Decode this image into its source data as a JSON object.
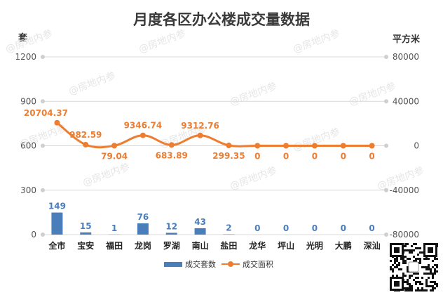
{
  "colors": {
    "bars": "#4a7ebb",
    "line": "#ed7d31",
    "grid": "#d9d9d9",
    "axis_text": "#555555",
    "watermark": "#e6e6e6"
  },
  "icons": {
    "qr_code": "qr-code-icon",
    "watermark": "watermark-icon"
  },
  "watermark_text": "@房地内参",
  "chart_data": {
    "type": "bar",
    "title": "月度各区办公楼成交量数据",
    "left_unit": "套",
    "right_unit": "平方米",
    "categories": [
      "全市",
      "宝安",
      "福田",
      "龙岗",
      "罗湖",
      "南山",
      "盐田",
      "龙华",
      "坪山",
      "光明",
      "大鹏",
      "深汕"
    ],
    "series": [
      {
        "name": "成交套数",
        "type": "bar",
        "axis": "left",
        "values": [
          149,
          15,
          1,
          76,
          12,
          43,
          2,
          0,
          0,
          0,
          0,
          0
        ],
        "labels": [
          "149",
          "15",
          "1",
          "76",
          "12",
          "43",
          "2",
          "0",
          "0",
          "0",
          "0",
          "0"
        ]
      },
      {
        "name": "成交面积",
        "type": "line",
        "axis": "right",
        "values": [
          20704.37,
          982.59,
          79.04,
          9346.74,
          683.89,
          9312.76,
          299.35,
          0,
          0,
          0,
          0,
          0
        ],
        "labels": [
          "20704.37",
          "982.59",
          "79.04",
          "9346.74",
          "683.89",
          "9312.76",
          "299.35",
          "0",
          "0",
          "0",
          "0",
          "0"
        ]
      }
    ],
    "left_axis": {
      "range": [
        0,
        1200
      ],
      "ticks": [
        "0",
        "300",
        "600",
        "900",
        "1200"
      ]
    },
    "right_axis": {
      "range": [
        -80000,
        80000
      ],
      "ticks": [
        "-80000",
        "-40000",
        "0",
        "40000",
        "80000"
      ]
    },
    "grid": true,
    "legend": "bottom"
  }
}
